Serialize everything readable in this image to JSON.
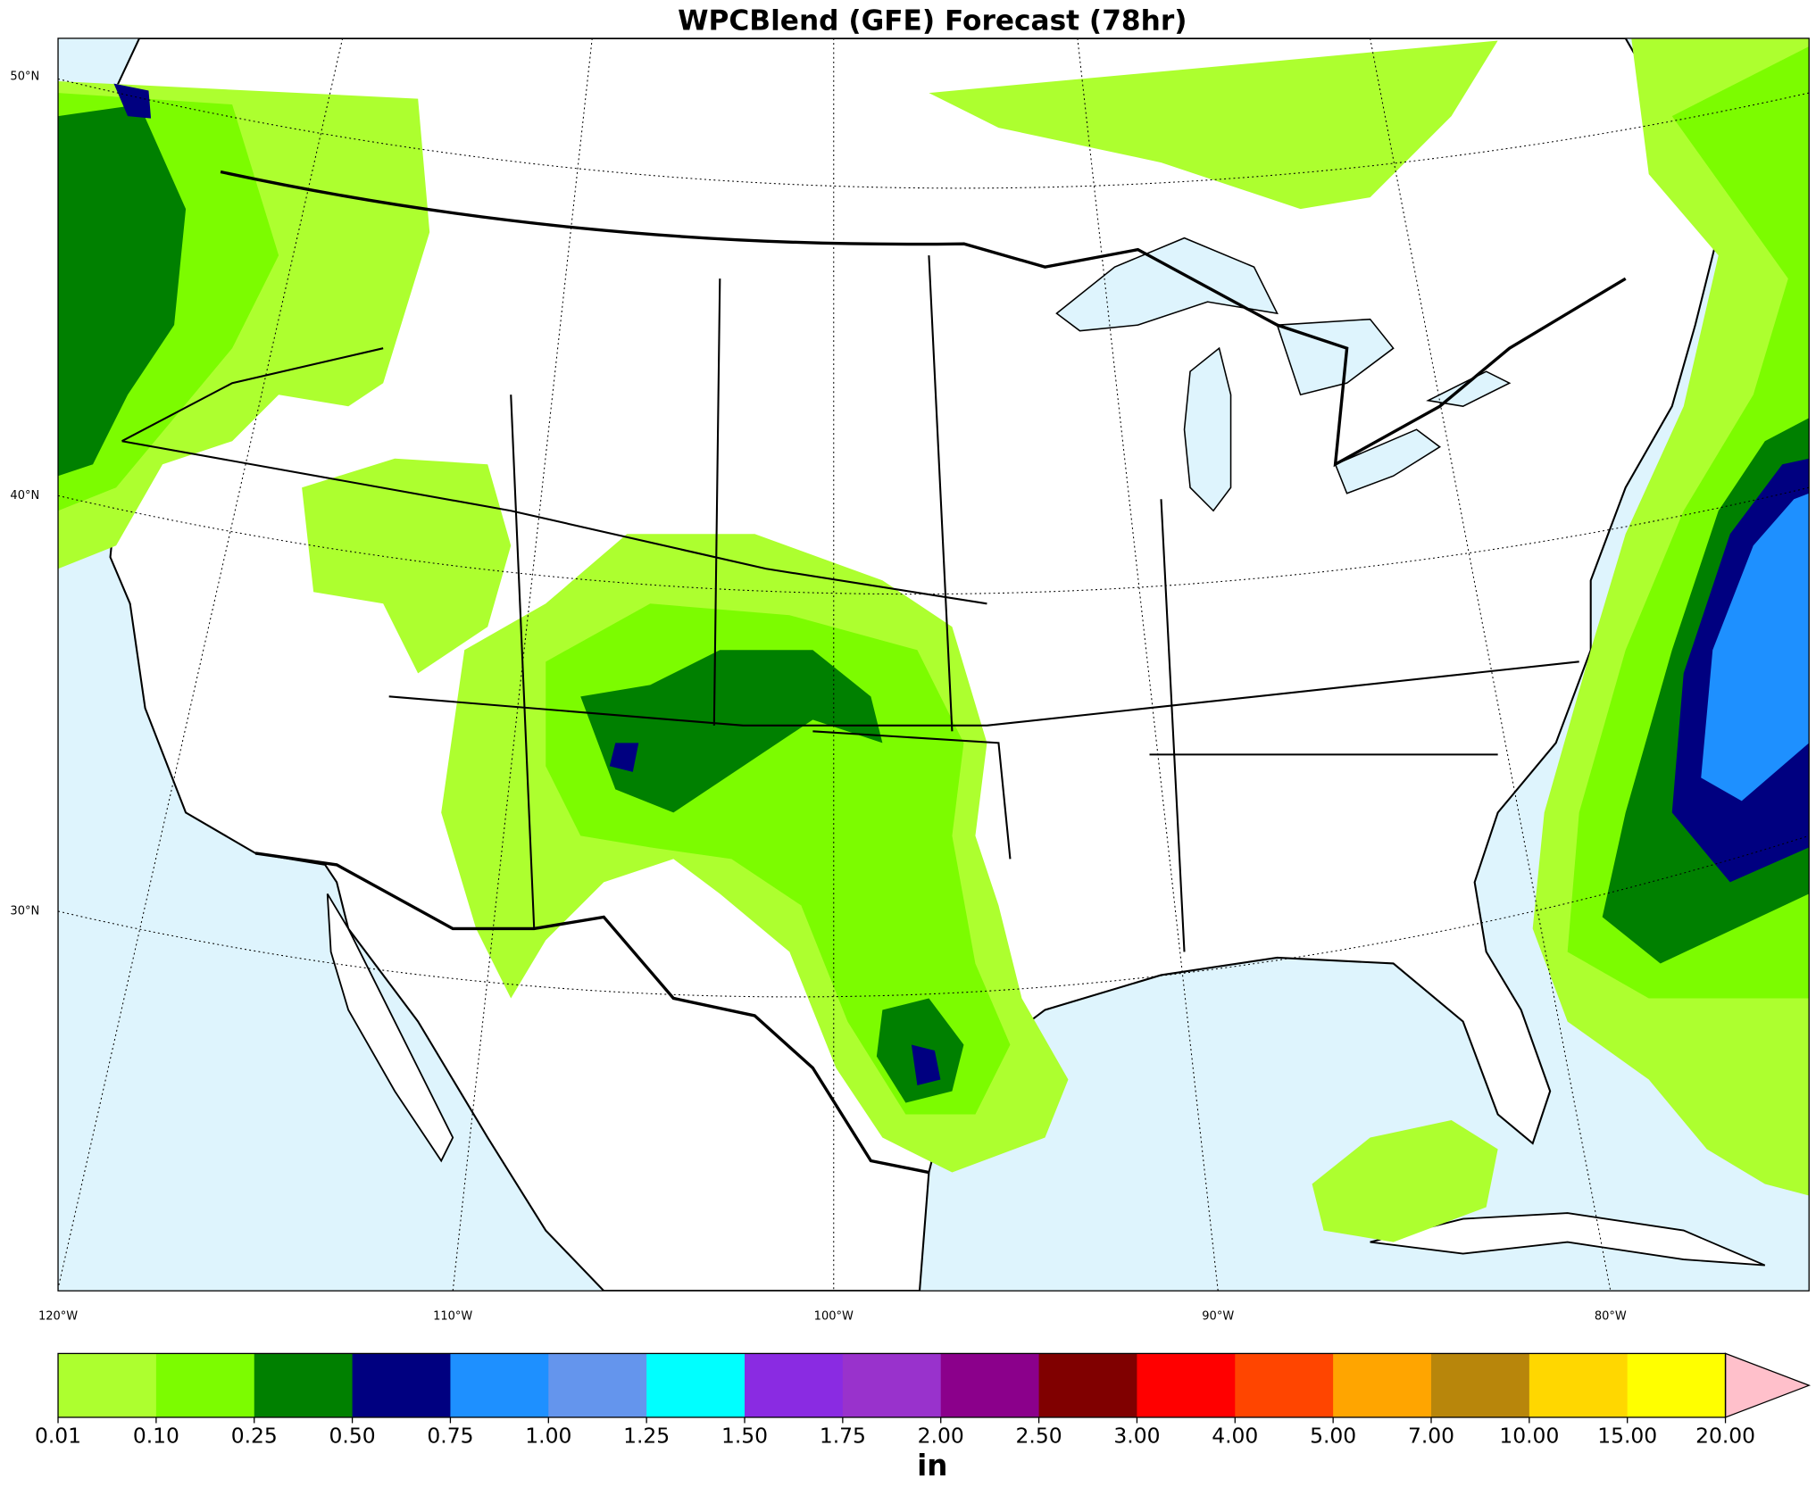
{
  "title": "WPCBlend (GFE) Forecast (78hr)",
  "map": {
    "lat_labels": [
      "50°N",
      "40°N",
      "30°N"
    ],
    "lon_labels": [
      "120°W",
      "110°W",
      "100°W",
      "90°W",
      "80°W"
    ]
  },
  "colorbar": {
    "labels": [
      "0.01",
      "0.10",
      "0.25",
      "0.50",
      "0.75",
      "1.00",
      "1.25",
      "1.50",
      "1.75",
      "2.00",
      "2.50",
      "3.00",
      "4.00",
      "5.00",
      "7.00",
      "10.00",
      "15.00",
      "20.00"
    ],
    "colors": [
      "#adff2f",
      "#7cfc00",
      "#008000",
      "#000080",
      "#1e90ff",
      "#6495ed",
      "#00ffff",
      "#8a2be2",
      "#9932cc",
      "#8b008b",
      "#800000",
      "#ff0000",
      "#ff4500",
      "#ffa500",
      "#b8860b",
      "#ffd700",
      "#ffff00"
    ],
    "extend_color": "#ffc0cb",
    "unit": "in"
  }
}
